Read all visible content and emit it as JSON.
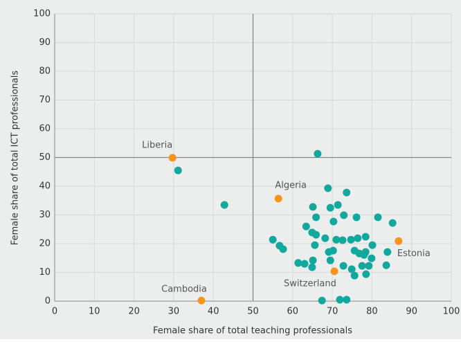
{
  "chart_data": {
    "type": "scatter",
    "xlabel": "Female share of total teaching professionals",
    "ylabel": "Female share of total ICT professionals",
    "xlim": [
      0,
      100
    ],
    "ylim": [
      0,
      100
    ],
    "xticks": [
      0,
      10,
      20,
      30,
      40,
      50,
      60,
      70,
      80,
      90,
      100
    ],
    "yticks": [
      0,
      10,
      20,
      30,
      40,
      50,
      60,
      70,
      80,
      90,
      100
    ],
    "grid": true,
    "hlines": [
      50
    ],
    "vlines": [
      50
    ],
    "series": [
      {
        "color": "#12a89d",
        "x": [
          31.1,
          42.8,
          66.3,
          68.9,
          73.6,
          71.4,
          69.5,
          65.1,
          72.9,
          65.9,
          76.1,
          81.5,
          85.2,
          70.3,
          63.4,
          64.9,
          65.9,
          68.2,
          71.0,
          72.6,
          74.7,
          76.4,
          78.4,
          55.0,
          65.6,
          56.7,
          57.6,
          70.2,
          69.1,
          75.6,
          76.8,
          78.0,
          78.4,
          80.1,
          79.9,
          83.9,
          83.6,
          61.4,
          63.0,
          65.1,
          64.9,
          69.5,
          72.8,
          74.9,
          77.5,
          79.2,
          75.6,
          78.5,
          67.4,
          71.9,
          73.6
        ],
        "y": [
          45.5,
          33.5,
          51.3,
          39.3,
          37.8,
          33.5,
          32.5,
          32.8,
          29.9,
          29.2,
          29.2,
          29.2,
          27.2,
          27.7,
          26.0,
          23.9,
          23.1,
          21.9,
          21.4,
          21.2,
          21.4,
          21.9,
          22.4,
          21.4,
          19.5,
          19.3,
          18.1,
          17.6,
          17.1,
          17.6,
          16.6,
          16.1,
          17.1,
          19.5,
          14.9,
          17.1,
          12.5,
          13.3,
          13.0,
          14.2,
          11.8,
          14.2,
          12.3,
          11.1,
          12.3,
          12.3,
          8.9,
          9.4,
          0.2,
          0.5,
          0.5
        ]
      },
      {
        "color": "#f7941d",
        "labels": [
          "Liberia",
          "Algeria",
          "Switzerland",
          "Estonia",
          "Cambodia"
        ],
        "x": [
          29.7,
          56.4,
          70.5,
          86.7,
          37.0
        ],
        "y": [
          49.9,
          35.7,
          10.4,
          20.9,
          0.2
        ]
      }
    ]
  }
}
